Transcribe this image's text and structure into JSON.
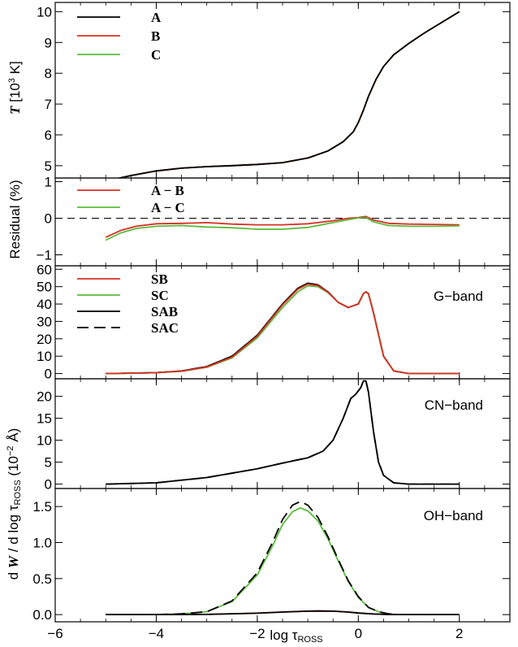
{
  "chart_data": {
    "type": "line",
    "x_axis": {
      "label": "log τROSS",
      "label_main": "log τ",
      "label_sub": "ROSS",
      "range": [
        -6,
        3
      ],
      "ticks": [
        -6,
        -4,
        -2,
        0,
        2
      ],
      "tick_labels": [
        "−6",
        "−4",
        "−2",
        "0",
        "2"
      ]
    },
    "shared_ylabel": {
      "text": "d W / d log τROSS (10−2 Å)",
      "part_d": "d ",
      "part_W": "W",
      "part_mid": " / d log τ",
      "part_sub": "ROSS",
      "part_units": " (10",
      "part_exp": "−2",
      "part_tail": " Å)"
    },
    "panels": [
      {
        "id": "temperature",
        "ylabel_italic": "T",
        "ylabel_rest": " [10",
        "ylabel_exp": "3",
        "ylabel_tail": " K]",
        "ylim": [
          4.6,
          10.3
        ],
        "yticks": [
          5,
          6,
          7,
          8,
          9,
          10
        ],
        "ytick_labels": [
          "5",
          "6",
          "7",
          "8",
          "9",
          "10"
        ],
        "legend": [
          "A",
          "B",
          "C"
        ],
        "series": [
          {
            "name": "C",
            "color": "#5cbb3c",
            "style": "solid",
            "x": [
              -5.0,
              -4.5,
              -4.0,
              -3.5,
              -3.0,
              -2.5,
              -2.0,
              -1.5,
              -1.0,
              -0.6,
              -0.3,
              -0.1,
              0.0,
              0.1,
              0.2,
              0.35,
              0.5,
              0.7,
              1.0,
              1.3,
              1.6,
              2.0
            ],
            "y": [
              4.5,
              4.68,
              4.83,
              4.92,
              4.97,
              5.0,
              5.04,
              5.1,
              5.25,
              5.48,
              5.78,
              6.1,
              6.4,
              6.8,
              7.25,
              7.8,
              8.22,
              8.6,
              8.97,
              9.3,
              9.6,
              10.0
            ]
          },
          {
            "name": "B",
            "color": "#d93025",
            "style": "solid",
            "x": [
              -5.0,
              -4.5,
              -4.0,
              -3.5,
              -3.0,
              -2.5,
              -2.0,
              -1.5,
              -1.0,
              -0.6,
              -0.3,
              -0.1,
              0.0,
              0.1,
              0.2,
              0.35,
              0.5,
              0.7,
              1.0,
              1.3,
              1.6,
              2.0
            ],
            "y": [
              4.5,
              4.68,
              4.83,
              4.92,
              4.97,
              5.0,
              5.04,
              5.1,
              5.25,
              5.48,
              5.78,
              6.1,
              6.4,
              6.8,
              7.25,
              7.8,
              8.22,
              8.6,
              8.97,
              9.3,
              9.6,
              10.0
            ]
          },
          {
            "name": "A",
            "color": "#000000",
            "style": "solid",
            "x": [
              -5.0,
              -4.5,
              -4.0,
              -3.5,
              -3.0,
              -2.5,
              -2.0,
              -1.5,
              -1.0,
              -0.6,
              -0.3,
              -0.1,
              0.0,
              0.1,
              0.2,
              0.35,
              0.5,
              0.7,
              1.0,
              1.3,
              1.6,
              2.0
            ],
            "y": [
              4.5,
              4.68,
              4.83,
              4.92,
              4.97,
              5.0,
              5.04,
              5.1,
              5.25,
              5.48,
              5.78,
              6.1,
              6.4,
              6.8,
              7.25,
              7.8,
              8.22,
              8.6,
              8.97,
              9.3,
              9.6,
              10.0
            ]
          }
        ]
      },
      {
        "id": "residual",
        "ylabel": "Residual (%)",
        "ylim": [
          -1.3,
          1.1
        ],
        "yticks": [
          -1,
          0,
          1
        ],
        "ytick_labels": [
          "−1",
          "0",
          "1"
        ],
        "zero_line": true,
        "legend": [
          "A − B",
          "A − C"
        ],
        "series": [
          {
            "name": "A − B",
            "color": "#d93025",
            "style": "solid",
            "x": [
              -5.0,
              -4.7,
              -4.4,
              -4.0,
              -3.5,
              -3.0,
              -2.5,
              -2.0,
              -1.5,
              -1.0,
              -0.5,
              -0.2,
              0.0,
              0.15,
              0.3,
              0.6,
              1.0,
              1.5,
              2.0
            ],
            "y": [
              -0.52,
              -0.33,
              -0.22,
              -0.15,
              -0.14,
              -0.12,
              -0.16,
              -0.18,
              -0.18,
              -0.15,
              -0.07,
              0.0,
              0.02,
              0.05,
              -0.05,
              -0.14,
              -0.16,
              -0.17,
              -0.18
            ]
          },
          {
            "name": "A − C",
            "color": "#5cbb3c",
            "style": "solid",
            "x": [
              -5.0,
              -4.7,
              -4.4,
              -4.0,
              -3.5,
              -3.0,
              -2.5,
              -2.0,
              -1.5,
              -1.0,
              -0.5,
              -0.2,
              0.0,
              0.15,
              0.3,
              0.6,
              1.0,
              1.5,
              2.0
            ],
            "y": [
              -0.6,
              -0.4,
              -0.28,
              -0.22,
              -0.2,
              -0.24,
              -0.26,
              -0.3,
              -0.3,
              -0.25,
              -0.12,
              -0.04,
              0.01,
              0.02,
              -0.1,
              -0.2,
              -0.22,
              -0.22,
              -0.21
            ]
          }
        ]
      },
      {
        "id": "g-band",
        "band_label": "G−band",
        "ylim": [
          -3,
          62
        ],
        "yticks": [
          0,
          10,
          20,
          30,
          40,
          50,
          60
        ],
        "ytick_labels": [
          "0",
          "10",
          "20",
          "30",
          "40",
          "50",
          "60"
        ],
        "legend": [
          "SB",
          "SC",
          "SAB",
          "SAC"
        ],
        "series": [
          {
            "name": "SAC",
            "color": "#000000",
            "style": "dashed",
            "x": [
              -5.0,
              -4.0,
              -3.5,
              -3.0,
              -2.5,
              -2.0,
              -1.5,
              -1.2,
              -1.0,
              -0.8,
              -0.6,
              -0.4,
              -0.2,
              0.0,
              0.1,
              0.15,
              0.2,
              0.3,
              0.5,
              0.7,
              1.0,
              2.0
            ],
            "y": [
              0.0,
              0.5,
              1.5,
              4.0,
              10.0,
              22.0,
              40.0,
              49.0,
              52.0,
              51.0,
              47.0,
              41.0,
              38.0,
              40.0,
              46.0,
              47.0,
              46.0,
              35.0,
              10.0,
              1.5,
              0.0,
              0.0
            ]
          },
          {
            "name": "SAB",
            "color": "#000000",
            "style": "solid",
            "x": [
              -5.0,
              -4.0,
              -3.5,
              -3.0,
              -2.5,
              -2.0,
              -1.5,
              -1.2,
              -1.0,
              -0.8,
              -0.6,
              -0.4,
              -0.2,
              0.0,
              0.1,
              0.15,
              0.2,
              0.3,
              0.5,
              0.7,
              1.0,
              2.0
            ],
            "y": [
              0.0,
              0.5,
              1.5,
              4.0,
              10.0,
              22.0,
              40.0,
              49.0,
              52.0,
              51.0,
              47.0,
              41.0,
              38.0,
              40.0,
              46.0,
              47.0,
              46.0,
              35.0,
              10.0,
              1.5,
              0.0,
              0.0
            ]
          },
          {
            "name": "SC",
            "color": "#5cbb3c",
            "style": "solid",
            "x": [
              -5.0,
              -4.0,
              -3.5,
              -3.0,
              -2.5,
              -2.0,
              -1.5,
              -1.2,
              -1.0,
              -0.8,
              -0.6,
              -0.4,
              -0.2,
              0.0,
              0.1,
              0.15,
              0.2,
              0.3,
              0.5,
              0.7,
              1.0,
              2.0
            ],
            "y": [
              0.0,
              0.45,
              1.3,
              3.6,
              9.0,
              20.5,
              38.0,
              47.0,
              50.5,
              50.0,
              46.5,
              41.0,
              38.0,
              40.0,
              46.0,
              47.0,
              46.0,
              35.0,
              10.0,
              1.5,
              0.0,
              0.0
            ]
          },
          {
            "name": "SB",
            "color": "#d93025",
            "style": "solid",
            "x": [
              -5.0,
              -4.0,
              -3.5,
              -3.0,
              -2.5,
              -2.0,
              -1.5,
              -1.2,
              -1.0,
              -0.8,
              -0.6,
              -0.4,
              -0.2,
              0.0,
              0.1,
              0.15,
              0.2,
              0.3,
              0.5,
              0.7,
              1.0,
              2.0
            ],
            "y": [
              0.0,
              0.5,
              1.4,
              3.8,
              9.5,
              21.5,
              39.5,
              48.5,
              51.5,
              50.6,
              46.8,
              41.0,
              38.0,
              40.0,
              46.0,
              47.0,
              46.0,
              35.0,
              10.0,
              1.5,
              0.0,
              0.0
            ]
          }
        ]
      },
      {
        "id": "cn-band",
        "band_label": "CN−band",
        "ylim": [
          -1,
          24
        ],
        "yticks": [
          0,
          5,
          10,
          15,
          20
        ],
        "ytick_labels": [
          "0",
          "5",
          "10",
          "15",
          "20"
        ],
        "series": [
          {
            "name": "SAB",
            "color": "#000000",
            "style": "solid",
            "x": [
              -5.0,
              -4.0,
              -3.0,
              -2.0,
              -1.5,
              -1.0,
              -0.7,
              -0.5,
              -0.3,
              -0.15,
              -0.05,
              0.05,
              0.1,
              0.15,
              0.2,
              0.3,
              0.4,
              0.5,
              0.7,
              1.0,
              2.0
            ],
            "y": [
              0.0,
              0.3,
              1.5,
              3.5,
              4.8,
              6.0,
              7.5,
              10.0,
              15.0,
              19.5,
              20.5,
              22.0,
              23.5,
              23.5,
              21.0,
              12.0,
              5.0,
              2.0,
              0.3,
              0.0,
              0.0
            ]
          },
          {
            "name": "SAC",
            "color": "#000000",
            "style": "dashed",
            "x": [
              -5.0,
              -4.0,
              -3.0,
              -2.0,
              -1.5,
              -1.0,
              -0.7,
              -0.5,
              -0.3,
              -0.15,
              -0.05,
              0.05,
              0.1,
              0.15,
              0.2,
              0.3,
              0.4,
              0.5,
              0.7,
              1.0,
              2.0
            ],
            "y": [
              0.0,
              0.3,
              1.5,
              3.5,
              4.8,
              6.0,
              7.5,
              10.0,
              15.0,
              19.5,
              20.5,
              22.0,
              23.5,
              23.5,
              21.0,
              12.0,
              5.0,
              2.0,
              0.3,
              0.0,
              0.0
            ]
          }
        ]
      },
      {
        "id": "oh-band",
        "band_label": "OH−band",
        "ylim": [
          -0.1,
          1.75
        ],
        "yticks": [
          0.0,
          0.5,
          1.0,
          1.5
        ],
        "ytick_labels": [
          "0.0",
          "0.5",
          "1.0",
          "1.5"
        ],
        "series": [
          {
            "name": "SC",
            "color": "#5cbb3c",
            "style": "solid",
            "x": [
              -5.0,
              -4.0,
              -3.5,
              -3.0,
              -2.5,
              -2.0,
              -1.7,
              -1.5,
              -1.3,
              -1.15,
              -1.0,
              -0.8,
              -0.6,
              -0.4,
              -0.2,
              0.0,
              0.2,
              0.4,
              0.6,
              0.8,
              1.0,
              2.0
            ],
            "y": [
              0.0,
              0.0,
              0.01,
              0.04,
              0.18,
              0.55,
              0.95,
              1.25,
              1.43,
              1.48,
              1.44,
              1.3,
              1.05,
              0.75,
              0.46,
              0.24,
              0.1,
              0.04,
              0.01,
              0.0,
              0.0,
              0.0
            ]
          },
          {
            "name": "SAC",
            "color": "#000000",
            "style": "dashed",
            "x": [
              -5.0,
              -4.0,
              -3.5,
              -3.0,
              -2.5,
              -2.0,
              -1.7,
              -1.5,
              -1.3,
              -1.15,
              -1.0,
              -0.8,
              -0.6,
              -0.4,
              -0.2,
              0.0,
              0.2,
              0.4,
              0.6,
              0.8,
              1.0,
              2.0
            ],
            "y": [
              0.0,
              0.0,
              0.01,
              0.04,
              0.19,
              0.58,
              1.0,
              1.32,
              1.52,
              1.57,
              1.52,
              1.35,
              1.08,
              0.77,
              0.47,
              0.25,
              0.1,
              0.04,
              0.01,
              0.0,
              0.0,
              0.0
            ]
          },
          {
            "name": "SB",
            "color": "#d93025",
            "style": "solid",
            "x": [
              -5.0,
              -4.0,
              -3.0,
              -2.0,
              -1.5,
              -1.0,
              -0.8,
              -0.5,
              -0.2,
              0.0,
              0.3,
              0.6,
              1.0,
              2.0
            ],
            "y": [
              0.0,
              0.0,
              0.003,
              0.02,
              0.035,
              0.048,
              0.05,
              0.048,
              0.035,
              0.022,
              0.008,
              0.002,
              0.0,
              0.0
            ]
          },
          {
            "name": "SAB",
            "color": "#000000",
            "style": "solid",
            "x": [
              -5.0,
              -4.0,
              -3.0,
              -2.0,
              -1.5,
              -1.0,
              -0.8,
              -0.5,
              -0.2,
              0.0,
              0.3,
              0.6,
              1.0,
              2.0
            ],
            "y": [
              0.0,
              0.0,
              0.003,
              0.02,
              0.035,
              0.048,
              0.05,
              0.048,
              0.035,
              0.022,
              0.008,
              0.002,
              0.0,
              0.0
            ]
          }
        ]
      }
    ],
    "legend_colors": {
      "A": "#000000",
      "B": "#d93025",
      "C": "#5cbb3c",
      "A − B": "#d93025",
      "A − C": "#5cbb3c",
      "SB": "#d93025",
      "SC": "#5cbb3c",
      "SAB": "#000000",
      "SAC": "#000000"
    },
    "legend_styles": {
      "SAC": "dashed"
    }
  }
}
